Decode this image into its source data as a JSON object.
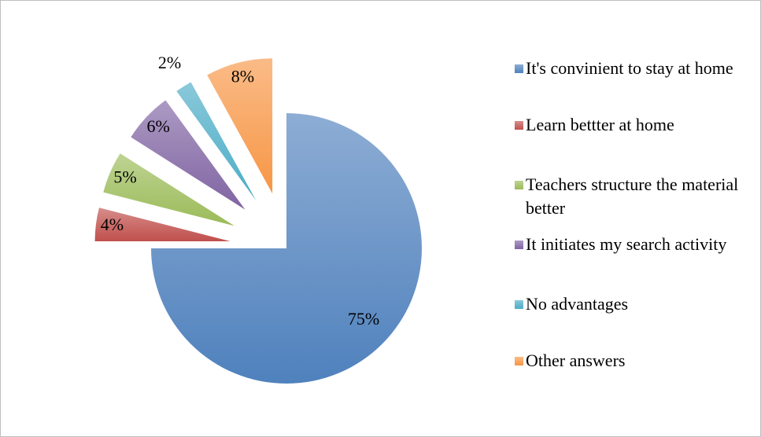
{
  "chart_data": {
    "type": "pie",
    "categories": [
      "It's convinient to stay at home",
      "Learn bettter at home",
      "Teachers structure the material better",
      "It initiates my search activity",
      "No advantages",
      "Other answers"
    ],
    "values": [
      75,
      4,
      5,
      6,
      2,
      8
    ],
    "value_labels": [
      "75%",
      "4%",
      "5%",
      "6%",
      "2%",
      "8%"
    ],
    "colors": [
      "#4f81bd",
      "#c0504d",
      "#9bbb59",
      "#8064a2",
      "#4bacc6",
      "#f79646"
    ],
    "legend": "right"
  }
}
